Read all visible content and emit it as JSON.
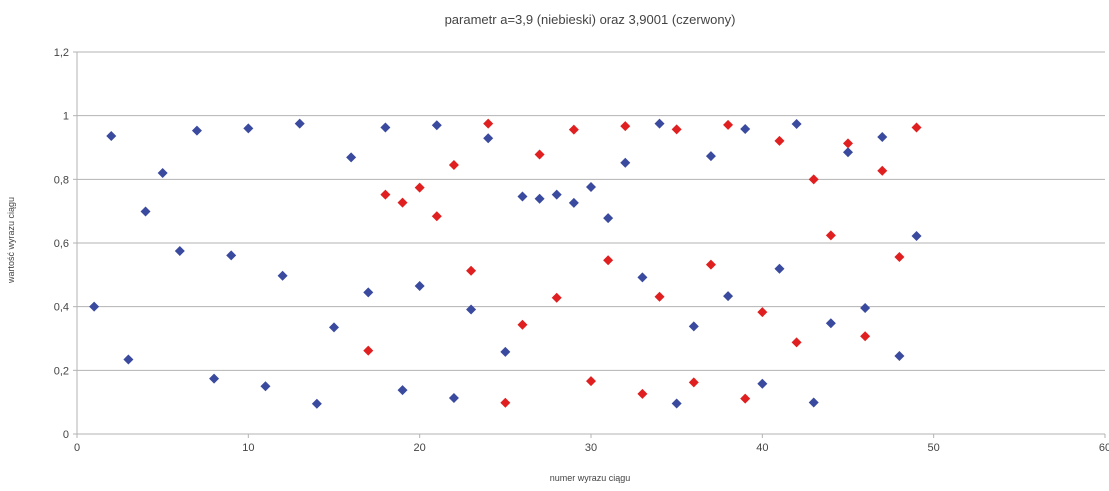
{
  "chart_data": {
    "type": "scatter",
    "title": "parametr a=3,9 (niebieski) oraz 3,9001 (czerwony)",
    "xlabel": "numer wyrazu ciągu",
    "ylabel": "wartość wyrazu ciągu",
    "xlim": [
      0,
      60
    ],
    "ylim": [
      0,
      1.2
    ],
    "x_ticks": [
      "0",
      "10",
      "20",
      "30",
      "40",
      "50",
      "60"
    ],
    "y_ticks": [
      "0",
      "0,2",
      "0,4",
      "0,6",
      "0,8",
      "1",
      "1,2"
    ],
    "x_tick_values": [
      0,
      10,
      20,
      30,
      40,
      50,
      60
    ],
    "y_tick_values": [
      0,
      0.2,
      0.4,
      0.6,
      0.8,
      1.0,
      1.2
    ],
    "grid": "horizontal",
    "marker": "diamond",
    "series": [
      {
        "color": "#3a4a9e",
        "x": [
          1,
          2,
          3,
          4,
          5,
          6,
          7,
          8,
          9,
          10,
          11,
          12,
          13,
          14,
          15,
          16,
          17,
          18,
          19,
          20,
          21,
          22,
          23,
          24,
          25,
          26,
          27,
          28,
          29,
          30,
          31,
          32,
          33,
          34,
          35,
          36,
          37,
          38,
          39,
          40,
          41,
          42,
          43,
          44,
          45,
          46,
          47,
          48,
          49
        ],
        "y": [
          0.4,
          0.936,
          0.234,
          0.699,
          0.82,
          0.575,
          0.953,
          0.174,
          0.561,
          0.96,
          0.15,
          0.497,
          0.975,
          0.095,
          0.335,
          0.869,
          0.445,
          0.963,
          0.138,
          0.465,
          0.97,
          0.113,
          0.391,
          0.929,
          0.258,
          0.746,
          0.739,
          0.752,
          0.726,
          0.776,
          0.678,
          0.852,
          0.492,
          0.975,
          0.096,
          0.338,
          0.873,
          0.433,
          0.958,
          0.158,
          0.519,
          0.974,
          0.099,
          0.348,
          0.885,
          0.396,
          0.933,
          0.245,
          0.622
        ]
      },
      {
        "color": "#e02020",
        "x": [
          17,
          18,
          19,
          20,
          21,
          22,
          23,
          24,
          25,
          26,
          27,
          28,
          29,
          30,
          31,
          32,
          33,
          34,
          35,
          36,
          37,
          38,
          39,
          40,
          41,
          42,
          43,
          44,
          45,
          46,
          47,
          48,
          49
        ],
        "y": [
          0.262,
          0.752,
          0.727,
          0.774,
          0.684,
          0.845,
          0.513,
          0.975,
          0.098,
          0.343,
          0.878,
          0.428,
          0.956,
          0.166,
          0.546,
          0.967,
          0.126,
          0.431,
          0.957,
          0.162,
          0.532,
          0.971,
          0.111,
          0.383,
          0.921,
          0.288,
          0.8,
          0.624,
          0.913,
          0.307,
          0.827,
          0.556,
          0.963
        ]
      }
    ]
  }
}
